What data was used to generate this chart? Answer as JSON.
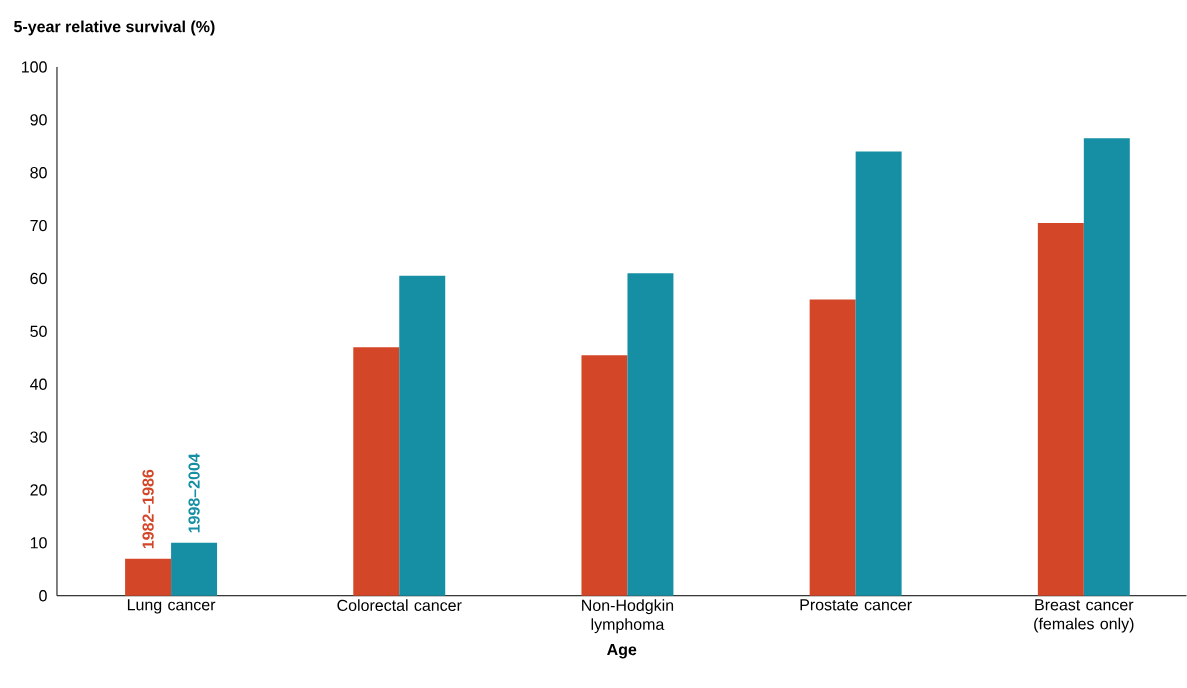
{
  "chart_data": {
    "type": "bar",
    "ylabel": "5-year relative survival (%)",
    "xlabel": "Age",
    "categories": [
      "Lung cancer",
      "Colorectal cancer",
      "Non-Hodgkin lymphoma",
      "Prostate cancer",
      "Breast cancer (females only)"
    ],
    "series": [
      {
        "name": "1982–1986",
        "color": "#d44628",
        "values": [
          7,
          47,
          45.5,
          56,
          70.5
        ]
      },
      {
        "name": "1998–2004",
        "color": "#168fa5",
        "values": [
          10,
          60.5,
          61,
          84,
          86.5
        ]
      }
    ],
    "ylim": [
      0,
      100
    ],
    "yticks": [
      0,
      10,
      20,
      30,
      40,
      50,
      60,
      70,
      80,
      90,
      100
    ]
  }
}
